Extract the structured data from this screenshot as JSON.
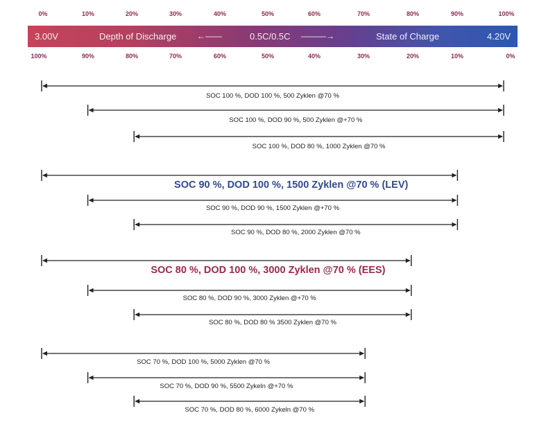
{
  "scale": {
    "top_percent_labels": [
      "0%",
      "10%",
      "20%",
      "30%",
      "40%",
      "50%",
      "60%",
      "70%",
      "80%",
      "90%",
      "100%"
    ],
    "bottom_percent_labels": [
      "100%",
      "90%",
      "80%",
      "70%",
      "60%",
      "50%",
      "40%",
      "30%",
      "20%",
      "10%",
      "0%"
    ],
    "voltage_left": "3.00V",
    "voltage_right": "4.20V",
    "dod_label": "Depth of Discharge",
    "soc_label": "State of Charge",
    "rate_label": "0.5C/0.5C",
    "arrow_left": "←——",
    "arrow_right": "———→",
    "colors": {
      "band_start": "#c7435a",
      "band_end": "#2c57b4",
      "percent_text": "#8a2c52"
    }
  },
  "ranges": [
    {
      "dod_start_pct": 0,
      "dod_end_pct": 100,
      "label": "SOC 100 %, DOD 100 %, 500 Zyklen @70 %",
      "emphasis": "none"
    },
    {
      "dod_start_pct": 10,
      "dod_end_pct": 100,
      "label": "SOC 100 %, DOD 90 %,   500 Zyklen @+70 %",
      "emphasis": "none"
    },
    {
      "dod_start_pct": 20,
      "dod_end_pct": 100,
      "label": "SOC 100 %, DOD 80 %, 1000 Zyklen @70 %",
      "emphasis": "none"
    },
    {
      "dod_start_pct": 0,
      "dod_end_pct": 90,
      "label": "SOC 90 %, DOD 100 %, 1500 Zyklen @70 % (LEV)",
      "emphasis": "blue"
    },
    {
      "dod_start_pct": 10,
      "dod_end_pct": 90,
      "label": "SOC 90 %, DOD 90 %,   1500 Zyklen @+70 %",
      "emphasis": "none"
    },
    {
      "dod_start_pct": 20,
      "dod_end_pct": 90,
      "label": "SOC 90 %, DOD 80 %,   2000 Zyklen @70 %",
      "emphasis": "none"
    },
    {
      "dod_start_pct": 0,
      "dod_end_pct": 80,
      "label": "SOC 80 %, DOD 100 %, 3000 Zyklen @70 % (EES)",
      "emphasis": "red"
    },
    {
      "dod_start_pct": 10,
      "dod_end_pct": 80,
      "label": "SOC 80 %, DOD 90 %, 3000 Zyklen @+70 %",
      "emphasis": "none"
    },
    {
      "dod_start_pct": 20,
      "dod_end_pct": 80,
      "label": "SOC 80 %, DOD 80 % 3500 Zyklen @70 %",
      "emphasis": "none"
    },
    {
      "dod_start_pct": 0,
      "dod_end_pct": 70,
      "label": "SOC 70 %, DOD 100 %, 5000 Zyklen @70 %",
      "emphasis": "none"
    },
    {
      "dod_start_pct": 10,
      "dod_end_pct": 70,
      "label": "SOC 70 %, DOD 90 %, 5500 Zykeln @+70 %",
      "emphasis": "none"
    },
    {
      "dod_start_pct": 20,
      "dod_end_pct": 70,
      "label": "SOC 70 %, DOD 80 %, 6000 Zykeln @70 %",
      "emphasis": "none"
    }
  ]
}
